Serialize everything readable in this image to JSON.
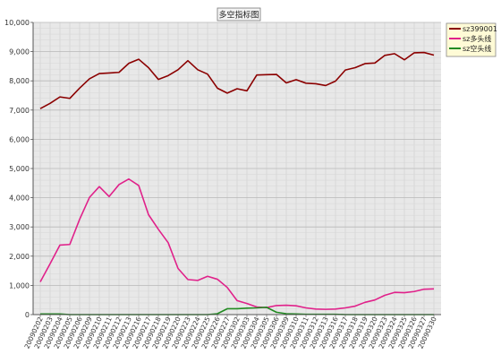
{
  "chart_data": {
    "type": "line",
    "title": "多空指标图",
    "xlabel": "",
    "ylabel": "",
    "ylim": [
      0,
      10000
    ],
    "yticks": [
      0,
      1000,
      2000,
      3000,
      4000,
      5000,
      6000,
      7000,
      8000,
      9000,
      10000
    ],
    "ytick_labels": [
      "0",
      "1,000",
      "2,000",
      "3,000",
      "4,000",
      "5,000",
      "6,000",
      "7,000",
      "8,000",
      "9,000",
      "10,000"
    ],
    "grid": true,
    "legend_position": "top-right",
    "categories": [
      "20090202",
      "20090203",
      "20090204",
      "20090205",
      "20090206",
      "20090209",
      "20090210",
      "20090211",
      "20090212",
      "20090213",
      "20090216",
      "20090217",
      "20090218",
      "20090219",
      "20090220",
      "20090223",
      "20090224",
      "20090225",
      "20090226",
      "20090227",
      "20090302",
      "20090303",
      "20090304",
      "20090305",
      "20090306",
      "20090309",
      "20090310",
      "20090311",
      "20090312",
      "20090313",
      "20090316",
      "20090317",
      "20090318",
      "20090319",
      "20090320",
      "20090323",
      "20090324",
      "20090325",
      "20090326",
      "20090327",
      "20090330"
    ],
    "series": [
      {
        "name": "sz399001",
        "color": "#8b0000",
        "values": [
          7050,
          7230,
          7450,
          7400,
          7750,
          8070,
          8250,
          8270,
          8290,
          8600,
          8740,
          8450,
          8050,
          8180,
          8380,
          8690,
          8380,
          8230,
          7750,
          7580,
          7730,
          7660,
          8200,
          8210,
          8220,
          7930,
          8040,
          7920,
          7900,
          7840,
          7990,
          8370,
          8450,
          8590,
          8610,
          8870,
          8930,
          8720,
          8960,
          8970,
          8880
        ]
      },
      {
        "name": "sz多头线",
        "color": "#e0218a",
        "values": [
          1120,
          1740,
          2380,
          2400,
          3260,
          4010,
          4380,
          4040,
          4450,
          4640,
          4420,
          3420,
          2920,
          2460,
          1580,
          1200,
          1170,
          1310,
          1210,
          930,
          480,
          380,
          260,
          240,
          310,
          320,
          300,
          230,
          190,
          180,
          190,
          230,
          290,
          420,
          500,
          660,
          760,
          750,
          790,
          870,
          880
        ]
      },
      {
        "name": "sz空头线",
        "color": "#228b22",
        "values": [
          20,
          20,
          20,
          0,
          0,
          0,
          0,
          0,
          0,
          0,
          0,
          0,
          0,
          0,
          0,
          0,
          0,
          0,
          30,
          200,
          200,
          220,
          230,
          250,
          80,
          30,
          20,
          10,
          10,
          10,
          10,
          0,
          0,
          0,
          0,
          0,
          0,
          0,
          0,
          0,
          0
        ]
      }
    ]
  }
}
